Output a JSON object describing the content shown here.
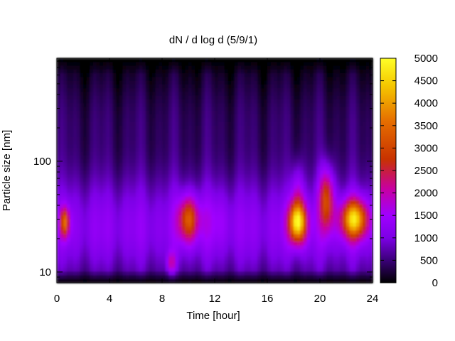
{
  "chart_data": {
    "type": "heatmap",
    "title": "dN / d log d (5/9/1)",
    "xlabel": "Time [hour]",
    "ylabel": "Particle size [nm]",
    "xlim": [
      0,
      24
    ],
    "ylim": [
      8,
      850
    ],
    "y_scale": "log",
    "x_ticks": [
      0,
      4,
      8,
      12,
      16,
      20,
      24
    ],
    "x_tick_labels": [
      "0",
      "4",
      "8",
      "12",
      "16",
      "20",
      "24"
    ],
    "y_ticks": [
      10,
      100
    ],
    "y_tick_labels": [
      "10",
      "100"
    ],
    "colorbar": {
      "range": [
        0,
        5000
      ],
      "ticks": [
        0,
        500,
        1000,
        1500,
        2000,
        2500,
        3000,
        3500,
        4000,
        4500,
        5000
      ],
      "tick_labels": [
        "0",
        "500",
        "1000",
        "1500",
        "2000",
        "2500",
        "3000",
        "3500",
        "4000",
        "4500",
        "5000"
      ],
      "colormap": [
        "#000000",
        "#3a0078",
        "#7d00e6",
        "#a000ff",
        "#c800a0",
        "#c83200",
        "#e66e00",
        "#f5c800",
        "#ffff28"
      ]
    },
    "grid": false,
    "legend": "none",
    "approx_features": [
      {
        "time_hour": 0.6,
        "size_nm": 28,
        "value": 2700
      },
      {
        "time_hour": 10.0,
        "size_nm": 30,
        "value": 2700
      },
      {
        "time_hour": 18.3,
        "size_nm": 28,
        "value": 4700
      },
      {
        "time_hour": 20.5,
        "size_nm": 50,
        "value": 3000
      },
      {
        "time_hour": 22.6,
        "size_nm": 30,
        "value": 4300
      },
      {
        "time_hour": 12.0,
        "size_nm": 30,
        "value": 1400
      },
      {
        "time_hour": 4.0,
        "size_nm": 200,
        "value": 400
      }
    ]
  }
}
